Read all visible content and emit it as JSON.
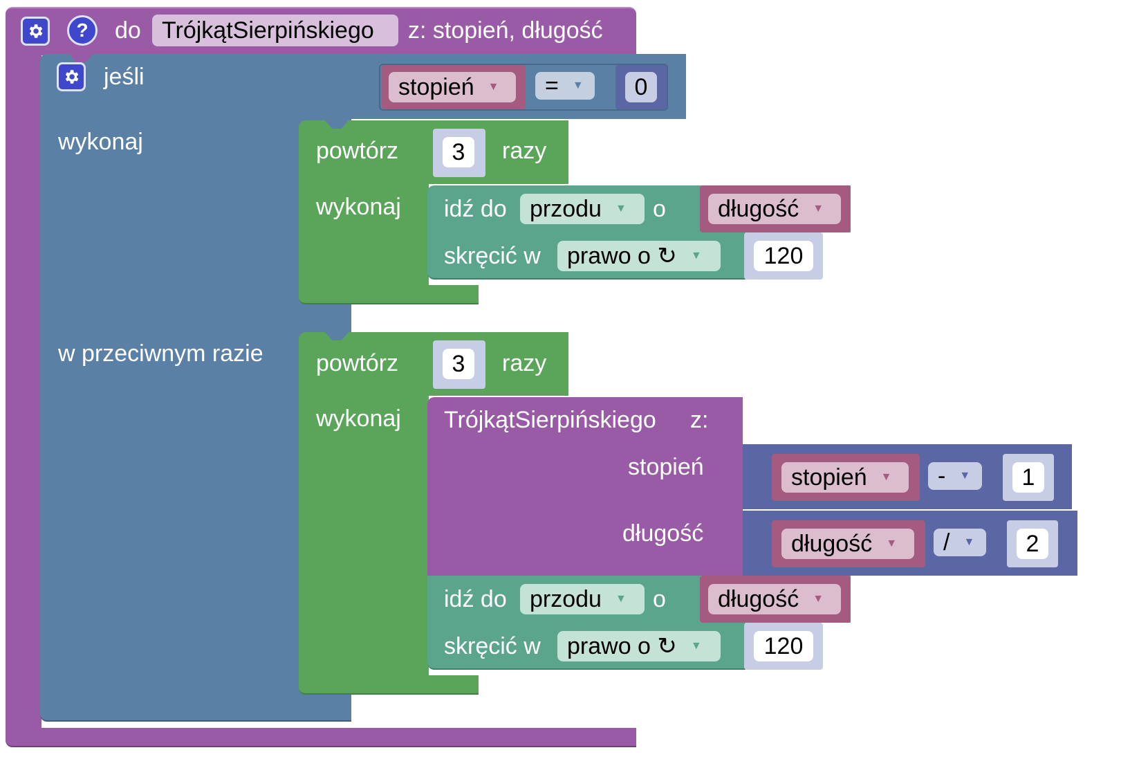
{
  "procedure": {
    "keyword": "do",
    "name": "TrójkątSierpińskiego",
    "params_text": "z: stopień, długość",
    "icons": [
      "gear-icon",
      "help-icon"
    ]
  },
  "if_block": {
    "label_if": "jeśli",
    "label_do": "wykonaj",
    "label_else": "w przeciwnym razie",
    "condition": {
      "variable": "stopień",
      "operator": "=",
      "value": "0"
    }
  },
  "then_repeat": {
    "label_repeat": "powtórz",
    "count": "3",
    "label_times": "razy",
    "label_do": "wykonaj",
    "move": {
      "label": "idź do",
      "direction": "przodu",
      "by": "o",
      "variable": "długość"
    },
    "turn": {
      "label": "skręcić w",
      "direction": "prawo o ↻",
      "value": "120"
    }
  },
  "else_repeat": {
    "label_repeat": "powtórz",
    "count": "3",
    "label_times": "razy",
    "label_do": "wykonaj",
    "call": {
      "name": "TrójkątSierpińskiego",
      "with": "z:",
      "arg1_label": "stopień",
      "arg1": {
        "variable": "stopień",
        "operator": "-",
        "value": "1"
      },
      "arg2_label": "długość",
      "arg2": {
        "variable": "długość",
        "operator": "/",
        "value": "2"
      }
    },
    "move": {
      "label": "idź do",
      "direction": "przodu",
      "by": "o",
      "variable": "długość"
    },
    "turn": {
      "label": "skręcić w",
      "direction": "prawo o ↻",
      "value": "120"
    }
  },
  "colors": {
    "procedure": "#995ba5",
    "logic": "#5b80a5",
    "loop": "#5ba55b",
    "turtle": "#5ba58c",
    "variable": "#a55b80",
    "math": "#5b67a5",
    "number": "#c8cde6"
  }
}
